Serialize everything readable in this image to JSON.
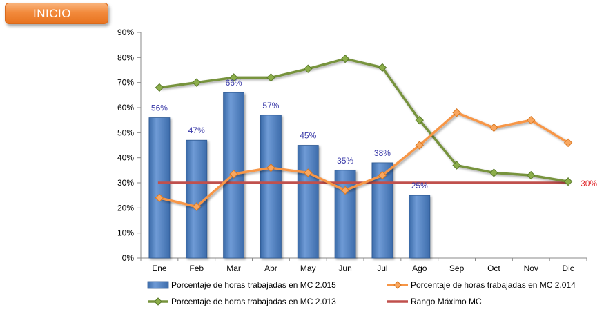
{
  "button": {
    "label": "INICIO"
  },
  "chart_data": {
    "type": "bar",
    "categories": [
      "Ene",
      "Feb",
      "Mar",
      "Abr",
      "May",
      "Jun",
      "Jul",
      "Ago",
      "Sep",
      "Oct",
      "Nov",
      "Dic"
    ],
    "ylim": [
      0,
      90
    ],
    "yticks": [
      "0%",
      "10%",
      "20%",
      "30%",
      "40%",
      "50%",
      "60%",
      "70%",
      "80%",
      "90%"
    ],
    "series": [
      {
        "name": "Porcentaje de horas trabajadas en MC 2.015",
        "type": "bar",
        "color": "#4f81bd",
        "values": [
          56,
          47,
          66,
          57,
          45,
          35,
          38,
          25,
          null,
          null,
          null,
          null
        ],
        "labels": [
          "56%",
          "47%",
          "66%",
          "57%",
          "45%",
          "35%",
          "38%",
          "25%",
          "",
          "",
          "",
          ""
        ]
      },
      {
        "name": "Porcentaje de horas trabajadas en MC 2.014",
        "type": "line",
        "color": "#f79646",
        "values": [
          24,
          20.5,
          33.5,
          36,
          34,
          27,
          33,
          45,
          58,
          52,
          55,
          46
        ]
      },
      {
        "name": "Porcentaje de horas trabajadas en MC 2.013",
        "type": "line",
        "color": "#77933c",
        "values": [
          68,
          70,
          72,
          72,
          75.5,
          79.5,
          76,
          55,
          37,
          34,
          33,
          30.5
        ]
      },
      {
        "name": "Rango Máximo MC",
        "type": "line",
        "color": "#c0504d",
        "values": [
          30,
          30,
          30,
          30,
          30,
          30,
          30,
          30,
          30,
          30,
          30,
          30
        ],
        "end_label": "30%"
      }
    ],
    "legend": "bottom",
    "grid": false
  }
}
